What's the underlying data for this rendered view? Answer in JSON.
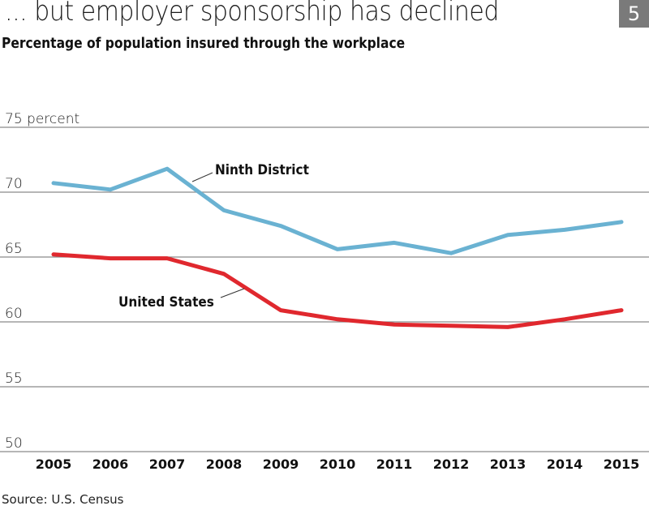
{
  "header": {
    "title": "... but employer sponsorship has declined",
    "subtitle": "Percentage of population insured through the workplace",
    "badge": "5"
  },
  "footer": {
    "source": "Source: U.S. Census"
  },
  "colors": {
    "ninth_district": "#6ab2d2",
    "united_states": "#e0282e",
    "grid": "#8a8a8a",
    "badge": "#7a7a7a"
  },
  "chart_data": {
    "type": "line",
    "title": "... but employer sponsorship has declined",
    "subtitle": "Percentage of population insured through the workplace",
    "xlabel": "",
    "ylabel": "percent",
    "x": [
      "2005",
      "2006",
      "2007",
      "2008",
      "2009",
      "2010",
      "2011",
      "2012",
      "2013",
      "2014",
      "2015"
    ],
    "ylim": [
      50,
      75
    ],
    "yticks": [
      50,
      55,
      60,
      65,
      70,
      75
    ],
    "ytick_labels": [
      "50",
      "55",
      "60",
      "65",
      "70",
      "75 percent"
    ],
    "grid": true,
    "legend": "inline labels",
    "series": [
      {
        "name": "Ninth District",
        "color": "#6ab2d2",
        "values": [
          70.7,
          70.2,
          71.8,
          68.6,
          67.4,
          65.6,
          66.1,
          65.3,
          66.7,
          67.1,
          67.7
        ]
      },
      {
        "name": "United States",
        "color": "#e0282e",
        "values": [
          65.2,
          64.9,
          64.9,
          63.7,
          60.9,
          60.2,
          59.8,
          59.7,
          59.6,
          60.2,
          60.9
        ]
      }
    ],
    "source": "Source: U.S. Census"
  }
}
